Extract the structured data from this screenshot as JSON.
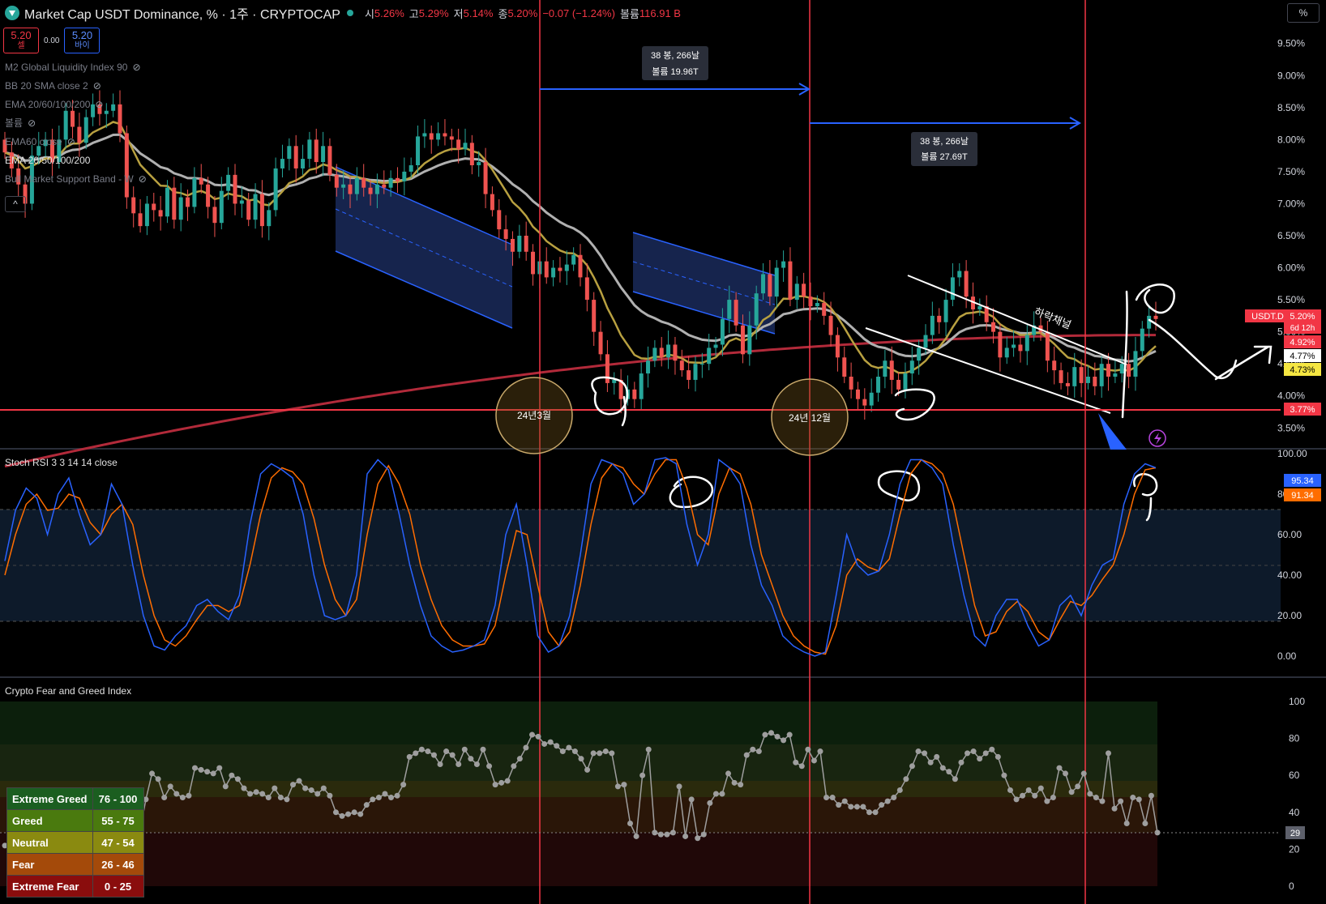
{
  "header": {
    "title": "Market Cap USDT Dominance, % · 1주 · CRYPTOCAP",
    "ohlc": [
      {
        "label": "시",
        "value": "5.26%"
      },
      {
        "label": "고",
        "value": "5.29%"
      },
      {
        "label": "저",
        "value": "5.14%"
      },
      {
        "label": "종",
        "value": "5.20%"
      }
    ],
    "change": "−0.07 (−1.24%)",
    "volume_label": "볼륨",
    "volume_value": "116.91 B",
    "scale_button": "%"
  },
  "price_buttons": {
    "sell_value": "5.20",
    "sell_label": "셀",
    "spread": "0.00",
    "buy_value": "5.20",
    "buy_label": "바이"
  },
  "indicators": [
    {
      "label": "M2 Global Liquidity Index 90",
      "hidden": true
    },
    {
      "label": "BB 20 SMA close 2",
      "hidden": true
    },
    {
      "label": "EMA 20/60/100/200",
      "hidden": true
    },
    {
      "label": "볼륨",
      "hidden": true
    },
    {
      "label": "EMA60 close",
      "hidden": true
    },
    {
      "label": "EMA 20/50/100/200",
      "hidden": false
    },
    {
      "label": "Bull Market Support Band - W",
      "hidden": true
    }
  ],
  "collapse_icon": "^",
  "annotations": {
    "box1": {
      "line1": "38 봉, 266날",
      "line2": "볼륨 19.96T"
    },
    "box2": {
      "line1": "38 봉, 266날",
      "line2": "볼륨 27.69T"
    },
    "circle1": "24년3월",
    "circle2": "24년 12월",
    "channel_label": "하락채널"
  },
  "price_labels": {
    "symbol": "USDT.D",
    "current": "5.20%",
    "countdown": "6d 12h",
    "band_upper": "4.92%",
    "band_mid": "4.77%",
    "band_low": "4.73%",
    "support": "3.77%"
  },
  "stoch": {
    "title": "Stoch RSI 3 3 14 14 close",
    "k_label": "95.34",
    "d_label": "91.34"
  },
  "fng": {
    "title": "Crypto Fear and Greed Index",
    "current": "29",
    "legend": [
      {
        "name": "Extreme Greed",
        "range": "76 - 100",
        "color": "#1b5e20"
      },
      {
        "name": "Greed",
        "range": "55 - 75",
        "color": "#4a7a0e"
      },
      {
        "name": "Neutral",
        "range": "47 - 54",
        "color": "#8a8a10"
      },
      {
        "name": "Fear",
        "range": "26 - 46",
        "color": "#a44a0a"
      },
      {
        "name": "Extreme Fear",
        "range": "0 - 25",
        "color": "#8a0d0d"
      }
    ]
  },
  "chart_data": [
    {
      "type": "candlestick",
      "title": "Market Cap USDT Dominance, % · 1주 · CRYPTOCAP",
      "ylim": [
        3.2,
        9.8
      ],
      "yticks": [
        "9.50%",
        "9.00%",
        "8.50%",
        "8.00%",
        "7.50%",
        "7.00%",
        "6.50%",
        "6.00%",
        "5.50%",
        "5.00%",
        "4.50%",
        "4.00%",
        "3.50%"
      ],
      "close": [
        7.8,
        7.55,
        7.3,
        7.0,
        7.75,
        7.9,
        8.0,
        7.65,
        8.0,
        8.45,
        8.2,
        7.95,
        8.35,
        8.55,
        8.4,
        8.45,
        8.55,
        8.1,
        7.1,
        6.85,
        6.65,
        7.0,
        6.9,
        6.8,
        7.25,
        6.75,
        7.1,
        6.95,
        7.4,
        7.3,
        6.95,
        6.7,
        7.2,
        7.45,
        7.0,
        7.05,
        6.75,
        7.15,
        6.65,
        6.9,
        7.55,
        7.7,
        7.9,
        7.55,
        7.7,
        8.0,
        7.65,
        7.9,
        7.45,
        7.25,
        7.3,
        7.15,
        7.4,
        7.25,
        7.15,
        7.3,
        7.25,
        7.4,
        7.35,
        7.5,
        7.6,
        8.05,
        8.1,
        8.0,
        8.1,
        8.05,
        8.0,
        7.85,
        7.95,
        7.6,
        7.65,
        7.15,
        6.9,
        6.6,
        6.45,
        6.25,
        6.5,
        6.25,
        5.9,
        6.1,
        5.85,
        6.0,
        5.95,
        6.05,
        6.2,
        5.85,
        5.5,
        5.0,
        4.65,
        4.2,
        4.25,
        3.95,
        4.1,
        3.95,
        4.35,
        4.55,
        4.75,
        4.6,
        4.8,
        4.55,
        4.4,
        4.25,
        4.5,
        4.5,
        4.75,
        4.8,
        5.2,
        5.5,
        5.1,
        4.65,
        5.1,
        5.6,
        5.9,
        5.55,
        6.0,
        6.1,
        5.5,
        5.75,
        5.55,
        5.4,
        5.45,
        5.25,
        4.95,
        4.6,
        4.3,
        4.1,
        3.95,
        3.85,
        4.05,
        4.3,
        4.55,
        4.25,
        4.1,
        4.35,
        4.55,
        4.75,
        4.95,
        5.25,
        5.15,
        5.5,
        5.85,
        5.95,
        5.55,
        5.35,
        5.4,
        5.15,
        5.0,
        4.6,
        4.75,
        4.8,
        4.7,
        4.95,
        5.1,
        5.0,
        4.55,
        4.4,
        4.2,
        4.15,
        4.45,
        4.2,
        4.3,
        4.15,
        4.5,
        4.3,
        4.35,
        4.5,
        4.3,
        4.7,
        5.05,
        5.25,
        5.2
      ],
      "series_visible": [
        "EMA 20/50/100/200"
      ]
    },
    {
      "type": "line",
      "title": "Stoch RSI 3 3 14 14 close",
      "ylim": [
        -10,
        100
      ],
      "yticks": [
        "100.00",
        "80.00",
        "60.00",
        "40.00",
        "20.00",
        "0.00"
      ],
      "k": [
        47,
        72,
        83,
        78,
        60,
        80,
        88,
        70,
        55,
        60,
        85,
        75,
        45,
        20,
        5,
        3,
        10,
        15,
        25,
        28,
        22,
        18,
        30,
        65,
        90,
        95,
        92,
        88,
        70,
        40,
        20,
        18,
        20,
        40,
        90,
        97,
        92,
        70,
        45,
        25,
        10,
        5,
        2,
        3,
        5,
        8,
        25,
        60,
        75,
        45,
        10,
        2,
        5,
        20,
        50,
        85,
        97,
        95,
        90,
        75,
        80,
        97,
        98,
        95,
        65,
        45,
        60,
        97,
        93,
        85,
        55,
        35,
        25,
        10,
        5,
        2,
        0,
        2,
        30,
        60,
        45,
        40,
        42,
        60,
        85,
        97,
        97,
        93,
        85,
        55,
        30,
        10,
        5,
        20,
        28,
        28,
        15,
        5,
        8,
        25,
        30,
        20,
        35,
        45,
        48,
        75,
        90,
        95,
        93
      ],
      "d": [
        40,
        60,
        75,
        80,
        72,
        73,
        80,
        78,
        66,
        60,
        70,
        75,
        65,
        40,
        20,
        8,
        5,
        10,
        18,
        25,
        25,
        22,
        25,
        45,
        70,
        88,
        93,
        91,
        85,
        68,
        45,
        28,
        20,
        28,
        60,
        85,
        94,
        85,
        70,
        45,
        28,
        15,
        8,
        5,
        5,
        6,
        15,
        40,
        62,
        60,
        35,
        12,
        5,
        12,
        35,
        65,
        88,
        95,
        93,
        85,
        80,
        90,
        97,
        97,
        83,
        60,
        55,
        80,
        93,
        90,
        75,
        50,
        35,
        20,
        10,
        5,
        2,
        1,
        15,
        40,
        48,
        44,
        42,
        48,
        70,
        90,
        97,
        95,
        90,
        75,
        50,
        25,
        10,
        12,
        22,
        27,
        22,
        12,
        8,
        18,
        27,
        25,
        30,
        38,
        45,
        60,
        80,
        92,
        93
      ],
      "series": [
        {
          "name": "K",
          "color": "#2962ff"
        },
        {
          "name": "D",
          "color": "#ff6d00"
        }
      ],
      "bands": [
        20,
        50,
        80
      ]
    },
    {
      "type": "line",
      "title": "Crypto Fear and Greed Index",
      "ylim": [
        0,
        100
      ],
      "yticks": [
        "100",
        "80",
        "60",
        "40",
        "20",
        "0"
      ],
      "values": [
        22,
        25,
        22,
        28,
        32,
        30,
        25,
        28,
        30,
        33,
        30,
        31,
        31,
        33,
        30,
        31,
        31,
        33,
        35,
        32,
        30,
        28,
        29,
        47,
        61,
        58,
        48,
        54,
        50,
        48,
        49,
        64,
        63,
        62,
        61,
        64,
        54,
        60,
        58,
        53,
        50,
        51,
        50,
        48,
        53,
        48,
        47,
        55,
        57,
        53,
        52,
        50,
        53,
        49,
        40,
        38,
        39,
        40,
        39,
        44,
        47,
        48,
        50,
        48,
        49,
        55,
        70,
        72,
        74,
        73,
        71,
        66,
        73,
        71,
        66,
        74,
        69,
        66,
        74,
        65,
        55,
        56,
        57,
        65,
        69,
        75,
        82,
        81,
        77,
        78,
        76,
        73,
        75,
        73,
        69,
        63,
        72,
        72,
        73,
        72,
        54,
        55,
        34,
        27,
        60,
        74,
        29,
        28,
        28,
        29,
        54,
        27,
        47,
        26,
        28,
        45,
        50,
        50,
        61,
        56,
        55,
        71,
        74,
        73,
        82,
        83,
        81,
        79,
        82,
        67,
        65,
        74,
        68,
        73,
        48,
        48,
        44,
        46,
        43,
        43,
        43,
        40,
        40,
        44,
        46,
        48,
        52,
        58,
        65,
        73,
        72,
        67,
        70,
        64,
        62,
        58,
        67,
        72,
        73,
        69,
        72,
        74,
        70,
        60,
        52,
        47,
        49,
        52,
        49,
        53,
        46,
        48,
        64,
        61,
        51,
        54,
        61,
        50,
        48,
        46,
        72,
        42,
        46,
        34,
        48,
        47,
        34,
        49,
        29
      ],
      "current": 29,
      "zones": [
        {
          "name": "Extreme Greed",
          "range": [
            76,
            100
          ]
        },
        {
          "name": "Greed",
          "range": [
            55,
            75
          ]
        },
        {
          "name": "Neutral",
          "range": [
            47,
            54
          ]
        },
        {
          "name": "Fear",
          "range": [
            26,
            46
          ]
        },
        {
          "name": "Extreme Fear",
          "range": [
            0,
            25
          ]
        }
      ]
    }
  ]
}
